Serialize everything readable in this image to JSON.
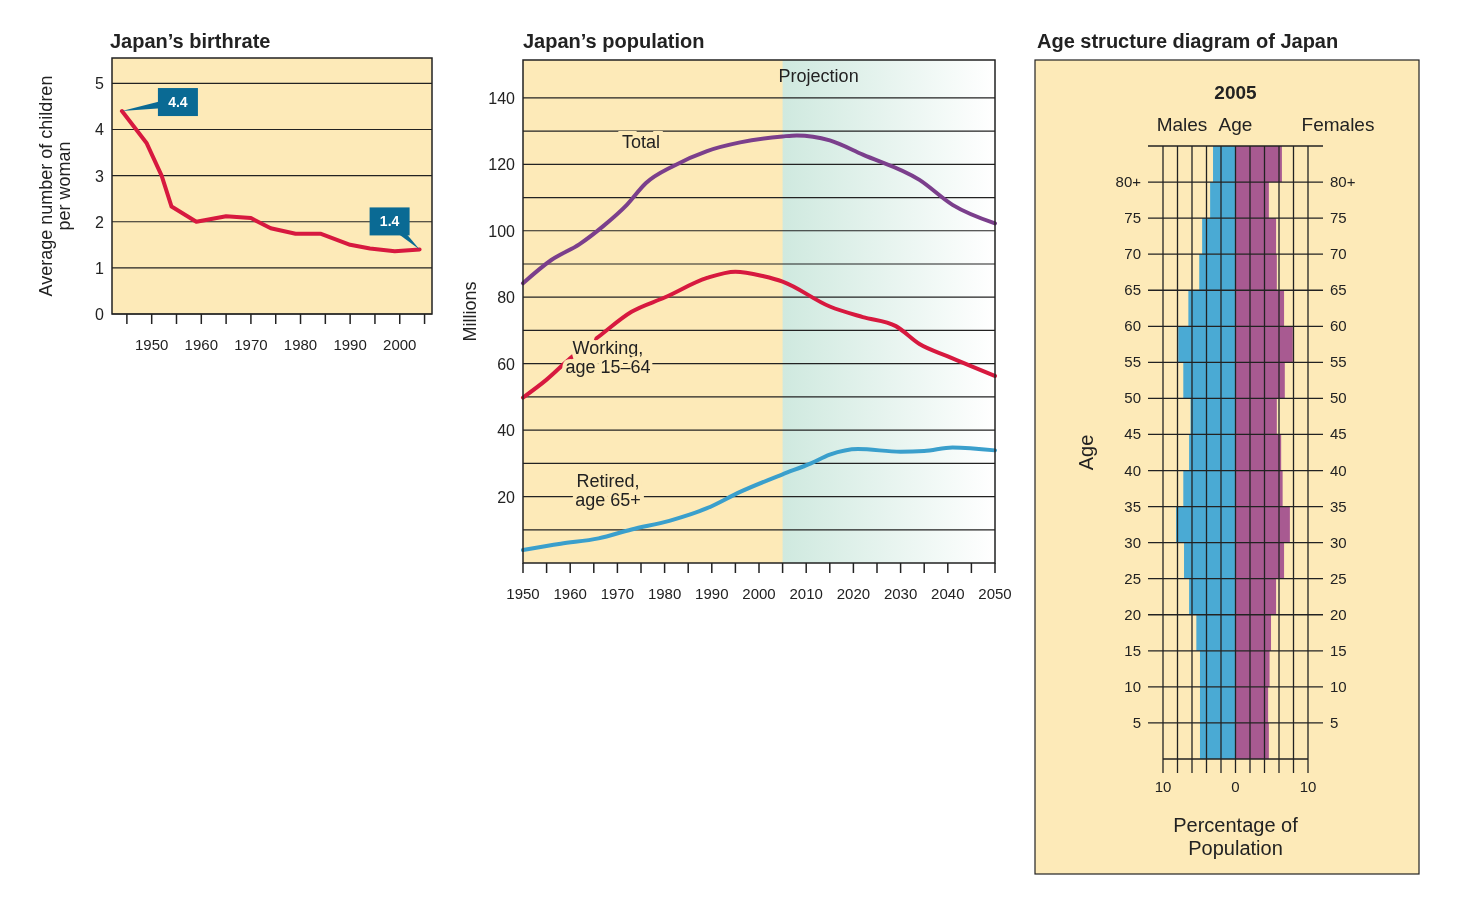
{
  "chart_data": [
    {
      "type": "line",
      "title": "Japan’s birthrate",
      "ylabel": "Average number of children per woman",
      "x": [
        1944,
        1949,
        1952,
        1954,
        1959,
        1965,
        1970,
        1974,
        1979,
        1984,
        1990,
        1994,
        1999,
        2004
      ],
      "series": [
        {
          "color": "#d7193f",
          "values": [
            4.4,
            3.7,
            3.0,
            2.33,
            2.0,
            2.12,
            2.08,
            1.86,
            1.74,
            1.74,
            1.5,
            1.42,
            1.36,
            1.4
          ]
        }
      ],
      "xlim": [
        1942,
        2006.5
      ],
      "xticks": [
        {
          "value": 1945,
          "label": null
        },
        1950,
        {
          "value": 1955,
          "label": null
        },
        1960,
        {
          "value": 1965,
          "label": null
        },
        1970,
        {
          "value": 1975,
          "label": null
        },
        1980,
        {
          "value": 1985,
          "label": null
        },
        1990,
        {
          "value": 1995,
          "label": null
        },
        2000,
        {
          "value": 2005,
          "label": null
        }
      ],
      "ylim": [
        0,
        5.55
      ],
      "yticks": [
        0,
        1,
        2,
        3,
        4,
        5
      ],
      "grid": "y",
      "annotations": [
        {
          "text": "4.4",
          "x": 1944,
          "y": 4.4
        },
        {
          "text": "1.4",
          "x": 2004,
          "y": 1.4
        }
      ]
    },
    {
      "type": "line",
      "title": "Japan’s population",
      "ylabel": "Millions",
      "series": [
        {
          "name": "Total",
          "color": "#7b3f8c",
          "x": [
            1950,
            1956,
            1962,
            1967,
            1972,
            1976,
            1982,
            1989,
            1996,
            2005,
            2008,
            2015,
            2022,
            2034,
            2041,
            2050
          ],
          "values": [
            84.2,
            91.2,
            96,
            101.4,
            107.8,
            114.3,
            119.6,
            124,
            126.6,
            128.4,
            128.7,
            127.2,
            122.9,
            115.3,
            107.8,
            102.2
          ]
        },
        {
          "name": "Working, age 15–64",
          "color": "#d7193f",
          "x": [
            1950,
            1955,
            1960,
            1966,
            1973,
            1980,
            1989,
            1995,
            2001,
            2005,
            2015,
            2022,
            2029,
            2034,
            2040,
            2050
          ],
          "values": [
            49.8,
            55.2,
            61.6,
            68.1,
            75.6,
            79.9,
            85.8,
            87.7,
            86.3,
            84.7,
            77.2,
            74,
            71.3,
            65.9,
            62.2,
            56.3
          ]
        },
        {
          "name": "Retired, age 65+",
          "color": "#3a9fcc",
          "x": [
            1950,
            1958,
            1966,
            1973,
            1981,
            1989,
            1996,
            2005,
            2011,
            2015,
            2021,
            2030,
            2035,
            2041,
            2050
          ],
          "values": [
            3.9,
            5.8,
            7.4,
            10.1,
            12.7,
            16.5,
            21.4,
            26.7,
            30,
            32.6,
            34.3,
            33.5,
            33.7,
            34.8,
            33.9
          ]
        }
      ],
      "xlim": [
        1950,
        2050
      ],
      "xticks": [
        1950,
        {
          "value": 1955,
          "label": null
        },
        1960,
        {
          "value": 1965,
          "label": null
        },
        1970,
        {
          "value": 1975,
          "label": null
        },
        1980,
        {
          "value": 1985,
          "label": null
        },
        1990,
        {
          "value": 1995,
          "label": null
        },
        2000,
        {
          "value": 2005,
          "label": null
        },
        2010,
        {
          "value": 2015,
          "label": null
        },
        2020,
        {
          "value": 2025,
          "label": null
        },
        2030,
        {
          "value": 2035,
          "label": null
        },
        2040,
        {
          "value": 2045,
          "label": null
        },
        2050
      ],
      "ylim": [
        0,
        151.4
      ],
      "yticks": [
        {
          "value": 10,
          "label": null
        },
        20,
        {
          "value": 30,
          "label": null
        },
        40,
        {
          "value": 50,
          "label": null
        },
        60,
        {
          "value": 70,
          "label": null
        },
        80,
        {
          "value": 90,
          "label": null
        },
        100,
        {
          "value": 110,
          "label": null
        },
        120,
        {
          "value": 130,
          "label": null
        },
        140
      ],
      "grid": "y",
      "bands": [
        {
          "axis": "x",
          "from": 2005,
          "to": 2050,
          "label": "Projection",
          "color": "#cfe9df"
        }
      ]
    },
    {
      "type": "bar",
      "orientation": "horizontal",
      "title": "Age structure diagram of Japan",
      "subtitle": "2005",
      "xlabel": "Percentage of Population",
      "ylabel": "Age",
      "categories": [
        "80+",
        "75",
        "70",
        "65",
        "60",
        "55",
        "50",
        "45",
        "40",
        "35",
        "30",
        "25",
        "20",
        "15",
        "10",
        "5",
        null
      ],
      "y2_categories": [
        "80+",
        "75",
        "70",
        "65",
        "60",
        "55",
        "50",
        "45",
        "40",
        "35",
        "30",
        "25",
        "20",
        "15",
        "10",
        "5",
        null
      ],
      "stacked": true,
      "series": [
        {
          "name": "Males",
          "color": "#4aaad4",
          "values": [
            -3.1,
            -3.5,
            -4.6,
            -5.0,
            -6.5,
            -7.9,
            -7.2,
            -6.2,
            -6.4,
            -7.2,
            -8.2,
            -7.1,
            -6.4,
            -5.4,
            -4.9,
            -4.9,
            -4.9
          ]
        },
        {
          "name": "Females",
          "color": "#a85a91",
          "values": [
            6.4,
            4.6,
            5.6,
            5.7,
            6.7,
            7.9,
            6.8,
            5.7,
            6.3,
            6.5,
            7.5,
            6.7,
            5.6,
            4.9,
            4.7,
            4.5,
            4.6
          ]
        }
      ],
      "xlim": [
        -10,
        10
      ],
      "xticks": [
        {
          "value": -10,
          "label": "10"
        },
        {
          "value": -8,
          "label": null
        },
        {
          "value": -6,
          "label": null
        },
        {
          "value": -4,
          "label": null
        },
        {
          "value": -2,
          "label": null
        },
        0,
        {
          "value": 2,
          "label": null
        },
        {
          "value": 4,
          "label": null
        },
        {
          "value": 6,
          "label": null
        },
        {
          "value": 8,
          "label": null
        },
        10
      ],
      "grid": true,
      "annotations": [
        "Age"
      ]
    }
  ]
}
